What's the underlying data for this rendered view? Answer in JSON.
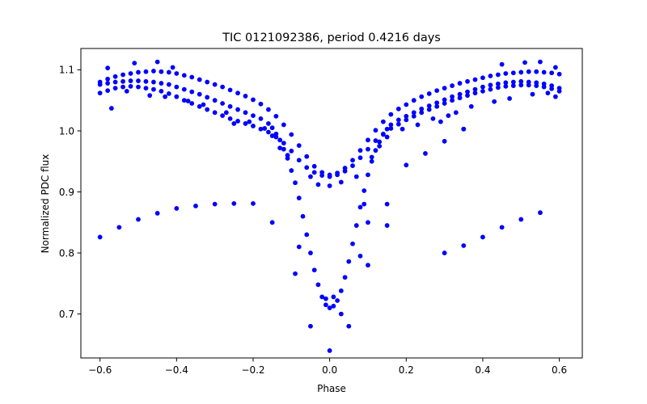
{
  "chart_data": {
    "type": "scatter",
    "title": "TIC 0121092386, period 0.4216 days",
    "xlabel": "Phase",
    "ylabel": "Normalized PDC flux",
    "xlim": [
      -0.65,
      0.66
    ],
    "ylim": [
      0.628,
      1.135
    ],
    "xticks": [
      -0.6,
      -0.4,
      -0.2,
      0.0,
      0.2,
      0.4,
      0.6
    ],
    "xtick_labels": [
      "−0.6",
      "−0.4",
      "−0.2",
      "0.0",
      "0.2",
      "0.4",
      "0.6"
    ],
    "yticks": [
      0.7,
      0.8,
      0.9,
      1.0,
      1.1
    ],
    "ytick_labels": [
      "0.7",
      "0.8",
      "0.9",
      "1.0",
      "1.1"
    ],
    "grid": false,
    "legend": "none",
    "marker_color": "#0000ff",
    "series": [
      {
        "points": [
          [
            -0.6,
            1.076
          ],
          [
            -0.58,
            1.078
          ],
          [
            -0.56,
            1.08
          ],
          [
            -0.54,
            1.081
          ],
          [
            -0.52,
            1.082
          ],
          [
            -0.5,
            1.082
          ],
          [
            -0.48,
            1.081
          ],
          [
            -0.46,
            1.08
          ],
          [
            -0.44,
            1.078
          ],
          [
            -0.42,
            1.076
          ],
          [
            -0.4,
            1.072
          ],
          [
            -0.38,
            1.068
          ],
          [
            -0.36,
            1.064
          ],
          [
            -0.34,
            1.06
          ],
          [
            -0.32,
            1.055
          ],
          [
            -0.3,
            1.05
          ],
          [
            -0.28,
            1.045
          ],
          [
            -0.26,
            1.04
          ],
          [
            -0.24,
            1.035
          ],
          [
            -0.22,
            1.03
          ],
          [
            -0.2,
            1.025
          ],
          [
            -0.18,
            1.02
          ],
          [
            -0.16,
            1.012
          ],
          [
            -0.15,
            1.005
          ],
          [
            -0.14,
            0.995
          ],
          [
            -0.13,
            0.985
          ],
          [
            -0.12,
            0.97
          ],
          [
            -0.11,
            0.955
          ],
          [
            -0.1,
            0.935
          ],
          [
            -0.09,
            0.915
          ],
          [
            -0.08,
            0.89
          ],
          [
            -0.07,
            0.86
          ],
          [
            -0.06,
            0.83
          ],
          [
            -0.05,
            0.8
          ],
          [
            -0.04,
            0.772
          ],
          [
            -0.03,
            0.748
          ],
          [
            -0.02,
            0.728
          ],
          [
            -0.01,
            0.715
          ],
          [
            0.0,
            0.71
          ],
          [
            0.01,
            0.713
          ],
          [
            0.02,
            0.722
          ],
          [
            0.03,
            0.738
          ],
          [
            0.04,
            0.76
          ],
          [
            0.05,
            0.786
          ],
          [
            0.06,
            0.815
          ],
          [
            0.07,
            0.845
          ],
          [
            0.08,
            0.875
          ],
          [
            0.09,
            0.902
          ],
          [
            0.1,
            0.928
          ],
          [
            0.11,
            0.95
          ],
          [
            0.12,
            0.968
          ],
          [
            0.13,
            0.982
          ],
          [
            0.14,
            0.994
          ],
          [
            0.15,
            1.003
          ],
          [
            0.16,
            1.01
          ],
          [
            0.18,
            1.018
          ],
          [
            0.2,
            1.024
          ],
          [
            0.22,
            1.03
          ],
          [
            0.24,
            1.036
          ],
          [
            0.26,
            1.041
          ],
          [
            0.28,
            1.046
          ],
          [
            0.3,
            1.051
          ],
          [
            0.32,
            1.056
          ],
          [
            0.34,
            1.06
          ],
          [
            0.36,
            1.064
          ],
          [
            0.38,
            1.068
          ],
          [
            0.4,
            1.072
          ],
          [
            0.42,
            1.075
          ],
          [
            0.44,
            1.077
          ],
          [
            0.46,
            1.079
          ],
          [
            0.48,
            1.08
          ],
          [
            0.5,
            1.081
          ],
          [
            0.52,
            1.08
          ],
          [
            0.54,
            1.079
          ],
          [
            0.56,
            1.077
          ],
          [
            0.58,
            1.074
          ],
          [
            0.6,
            1.07
          ]
        ]
      },
      {
        "points": [
          [
            -0.6,
            1.062
          ],
          [
            -0.58,
            1.066
          ],
          [
            -0.56,
            1.07
          ],
          [
            -0.54,
            1.072
          ],
          [
            -0.52,
            1.073
          ],
          [
            -0.5,
            1.072
          ],
          [
            -0.48,
            1.07
          ],
          [
            -0.46,
            1.068
          ],
          [
            -0.44,
            1.065
          ],
          [
            -0.42,
            1.061
          ],
          [
            -0.4,
            1.056
          ],
          [
            -0.38,
            1.05
          ],
          [
            -0.36,
            1.045
          ],
          [
            -0.34,
            1.04
          ],
          [
            -0.32,
            1.035
          ],
          [
            -0.3,
            1.03
          ],
          [
            -0.28,
            1.025
          ],
          [
            -0.26,
            1.02
          ],
          [
            -0.24,
            1.016
          ],
          [
            -0.22,
            1.012
          ],
          [
            -0.2,
            1.008
          ],
          [
            -0.18,
            1.003
          ],
          [
            -0.16,
            0.998
          ],
          [
            -0.14,
            0.99
          ],
          [
            -0.12,
            0.98
          ],
          [
            -0.1,
            0.967
          ],
          [
            -0.08,
            0.952
          ],
          [
            -0.06,
            0.94
          ],
          [
            -0.04,
            0.932
          ],
          [
            -0.02,
            0.927
          ],
          [
            0.0,
            0.925
          ],
          [
            0.02,
            0.928
          ],
          [
            0.04,
            0.934
          ],
          [
            0.06,
            0.943
          ],
          [
            0.08,
            0.956
          ],
          [
            0.1,
            0.97
          ],
          [
            0.12,
            0.984
          ],
          [
            0.14,
            0.995
          ],
          [
            0.16,
            1.004
          ],
          [
            0.18,
            1.011
          ],
          [
            0.2,
            1.018
          ],
          [
            0.22,
            1.024
          ],
          [
            0.24,
            1.03
          ],
          [
            0.26,
            1.035
          ],
          [
            0.28,
            1.04
          ],
          [
            0.3,
            1.045
          ],
          [
            0.32,
            1.05
          ],
          [
            0.34,
            1.054
          ],
          [
            0.36,
            1.058
          ],
          [
            0.38,
            1.062
          ],
          [
            0.4,
            1.065
          ],
          [
            0.42,
            1.068
          ],
          [
            0.44,
            1.071
          ],
          [
            0.46,
            1.073
          ],
          [
            0.48,
            1.074
          ],
          [
            0.5,
            1.075
          ],
          [
            0.52,
            1.075
          ],
          [
            0.54,
            1.074
          ],
          [
            0.56,
            1.072
          ],
          [
            0.58,
            1.069
          ],
          [
            0.6,
            1.065
          ]
        ]
      },
      {
        "points": [
          [
            -0.6,
            1.08
          ],
          [
            -0.58,
            1.085
          ],
          [
            -0.56,
            1.089
          ],
          [
            -0.54,
            1.092
          ],
          [
            -0.52,
            1.094
          ],
          [
            -0.5,
            1.096
          ],
          [
            -0.48,
            1.097
          ],
          [
            -0.46,
            1.098
          ],
          [
            -0.44,
            1.097
          ],
          [
            -0.42,
            1.096
          ],
          [
            -0.4,
            1.094
          ],
          [
            -0.38,
            1.091
          ],
          [
            -0.36,
            1.088
          ],
          [
            -0.34,
            1.084
          ],
          [
            -0.32,
            1.08
          ],
          [
            -0.3,
            1.076
          ],
          [
            -0.28,
            1.072
          ],
          [
            -0.26,
            1.067
          ],
          [
            -0.24,
            1.062
          ],
          [
            -0.22,
            1.057
          ],
          [
            -0.2,
            1.051
          ],
          [
            -0.18,
            1.044
          ],
          [
            -0.16,
            1.035
          ],
          [
            -0.14,
            1.024
          ],
          [
            -0.12,
            1.01
          ],
          [
            -0.1,
            0.994
          ],
          [
            -0.08,
            0.976
          ],
          [
            -0.06,
            0.958
          ],
          [
            -0.04,
            0.942
          ],
          [
            -0.02,
            0.932
          ],
          [
            0.0,
            0.928
          ],
          [
            0.02,
            0.931
          ],
          [
            0.04,
            0.939
          ],
          [
            0.06,
            0.952
          ],
          [
            0.08,
            0.968
          ],
          [
            0.1,
            0.985
          ],
          [
            0.12,
            1.001
          ],
          [
            0.14,
            1.015
          ],
          [
            0.16,
            1.027
          ],
          [
            0.18,
            1.036
          ],
          [
            0.2,
            1.043
          ],
          [
            0.22,
            1.05
          ],
          [
            0.24,
            1.056
          ],
          [
            0.26,
            1.061
          ],
          [
            0.28,
            1.066
          ],
          [
            0.3,
            1.07
          ],
          [
            0.32,
            1.074
          ],
          [
            0.34,
            1.078
          ],
          [
            0.36,
            1.081
          ],
          [
            0.38,
            1.084
          ],
          [
            0.4,
            1.087
          ],
          [
            0.42,
            1.09
          ],
          [
            0.44,
            1.092
          ],
          [
            0.46,
            1.094
          ],
          [
            0.48,
            1.095
          ],
          [
            0.5,
            1.096
          ],
          [
            0.52,
            1.097
          ],
          [
            0.54,
            1.097
          ],
          [
            0.56,
            1.096
          ],
          [
            0.58,
            1.095
          ],
          [
            0.6,
            1.093
          ]
        ]
      },
      {
        "points": [
          [
            -0.58,
            1.103
          ],
          [
            -0.51,
            1.111
          ],
          [
            -0.45,
            1.113
          ],
          [
            -0.41,
            1.104
          ],
          [
            -0.57,
            1.037
          ],
          [
            -0.53,
            1.065
          ],
          [
            -0.47,
            1.058
          ],
          [
            -0.43,
            1.056
          ],
          [
            -0.37,
            1.049
          ],
          [
            -0.33,
            1.043
          ],
          [
            -0.27,
            1.03
          ],
          [
            -0.25,
            1.012
          ],
          [
            -0.21,
            1.015
          ],
          [
            -0.17,
            1.004
          ],
          [
            -0.15,
            0.992
          ],
          [
            -0.13,
            0.972
          ],
          [
            -0.11,
            0.96
          ],
          [
            -0.05,
            0.925
          ],
          [
            -0.03,
            0.912
          ],
          [
            0.0,
            0.91
          ],
          [
            0.03,
            0.916
          ],
          [
            0.07,
            0.925
          ],
          [
            0.11,
            0.957
          ],
          [
            0.13,
            0.975
          ],
          [
            0.15,
            0.99
          ],
          [
            0.19,
            1.003
          ],
          [
            0.23,
            1.01
          ],
          [
            0.27,
            1.02
          ],
          [
            0.29,
            1.015
          ],
          [
            0.31,
            1.025
          ],
          [
            0.33,
            1.03
          ],
          [
            0.35,
            1.003
          ],
          [
            0.37,
            1.04
          ],
          [
            0.43,
            1.048
          ],
          [
            0.47,
            1.053
          ],
          [
            0.53,
            1.06
          ],
          [
            0.57,
            1.062
          ],
          [
            0.59,
            1.056
          ],
          [
            0.45,
            1.109
          ],
          [
            0.51,
            1.112
          ],
          [
            0.55,
            1.113
          ],
          [
            0.59,
            1.104
          ],
          [
            -0.05,
            0.68
          ],
          [
            0.0,
            0.64
          ],
          [
            0.05,
            0.68
          ],
          [
            -0.01,
            0.725
          ],
          [
            0.01,
            0.728
          ],
          [
            0.03,
            0.7
          ],
          [
            -0.09,
            0.766
          ],
          [
            0.1,
            0.78
          ],
          [
            -0.08,
            0.81
          ],
          [
            0.08,
            0.795
          ],
          [
            0.1,
            0.85
          ],
          [
            -0.15,
            0.85
          ],
          [
            0.15,
            0.845
          ],
          [
            0.09,
            0.88
          ]
        ]
      },
      {
        "points": [
          [
            -0.6,
            0.826
          ],
          [
            -0.55,
            0.842
          ],
          [
            -0.5,
            0.855
          ],
          [
            -0.45,
            0.865
          ],
          [
            -0.4,
            0.873
          ],
          [
            -0.35,
            0.877
          ],
          [
            -0.3,
            0.88
          ],
          [
            -0.25,
            0.881
          ],
          [
            -0.2,
            0.881
          ],
          [
            0.15,
            0.88
          ],
          [
            0.2,
            0.944
          ],
          [
            0.25,
            0.963
          ],
          [
            0.3,
            0.983
          ],
          [
            0.35,
            1.003
          ],
          [
            0.3,
            0.8
          ],
          [
            0.35,
            0.812
          ],
          [
            0.4,
            0.826
          ],
          [
            0.45,
            0.842
          ],
          [
            0.5,
            0.855
          ],
          [
            0.55,
            0.866
          ]
        ]
      }
    ]
  }
}
